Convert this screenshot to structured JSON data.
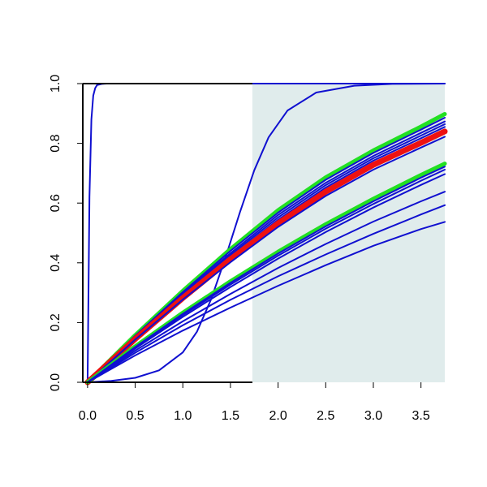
{
  "chart_data": {
    "type": "line",
    "title": "",
    "xlabel": "",
    "ylabel": "",
    "xlim": [
      -0.05,
      3.75
    ],
    "ylim": [
      0,
      1
    ],
    "x_ticks": [
      "0.0",
      "0.5",
      "1.0",
      "1.5",
      "2.0",
      "2.5",
      "3.0",
      "3.5"
    ],
    "y_ticks": [
      "0.0",
      "0.2",
      "0.4",
      "0.6",
      "0.8",
      "1.0"
    ],
    "grid": false,
    "legend": "none",
    "shaded_region": {
      "x_from": 1.73,
      "x_to": 3.75,
      "color": "#e0ecec"
    },
    "colors": {
      "blue": "#1010d0",
      "green": "#22e022",
      "red": "#ee1111",
      "axis": "#000000"
    },
    "series": [
      {
        "style": "blue",
        "x": [
          0,
          0.02,
          0.04,
          0.06,
          0.08,
          0.1,
          0.15,
          0.2,
          0.5,
          1.0,
          2.0,
          3.75
        ],
        "y": [
          0,
          0.62,
          0.88,
          0.96,
          0.985,
          0.995,
          0.999,
          1.0,
          1.0,
          1.0,
          1.0,
          1.0
        ]
      },
      {
        "style": "blue",
        "x": [
          0,
          0.25,
          0.5,
          0.75,
          1.0,
          1.15,
          1.3,
          1.45,
          1.6,
          1.75,
          1.9,
          2.1,
          2.4,
          2.8,
          3.2,
          3.75
        ],
        "y": [
          0,
          0.005,
          0.015,
          0.04,
          0.1,
          0.17,
          0.28,
          0.42,
          0.57,
          0.71,
          0.82,
          0.91,
          0.97,
          0.993,
          0.999,
          1.0
        ]
      },
      {
        "style": "green",
        "x": [
          0,
          0.5,
          1.0,
          1.5,
          2.0,
          2.5,
          3.0,
          3.5,
          3.75
        ],
        "y": [
          0,
          0.158,
          0.306,
          0.446,
          0.576,
          0.686,
          0.776,
          0.856,
          0.898
        ]
      },
      {
        "style": "blue",
        "x": [
          0,
          0.5,
          1.0,
          1.5,
          2.0,
          2.5,
          3.0,
          3.5,
          3.75
        ],
        "y": [
          0,
          0.156,
          0.302,
          0.44,
          0.568,
          0.678,
          0.768,
          0.846,
          0.886
        ]
      },
      {
        "style": "blue",
        "x": [
          0,
          0.5,
          1.0,
          1.5,
          2.0,
          2.5,
          3.0,
          3.5,
          3.75
        ],
        "y": [
          0,
          0.154,
          0.297,
          0.432,
          0.56,
          0.668,
          0.758,
          0.835,
          0.873
        ]
      },
      {
        "style": "blue",
        "x": [
          0,
          0.5,
          1.0,
          1.5,
          2.0,
          2.5,
          3.0,
          3.5,
          3.75
        ],
        "y": [
          0,
          0.152,
          0.293,
          0.426,
          0.552,
          0.66,
          0.75,
          0.826,
          0.864
        ]
      },
      {
        "style": "blue",
        "x": [
          0,
          0.5,
          1.0,
          1.5,
          2.0,
          2.5,
          3.0,
          3.5,
          3.75
        ],
        "y": [
          0,
          0.15,
          0.289,
          0.42,
          0.544,
          0.652,
          0.742,
          0.817,
          0.855
        ]
      },
      {
        "style": "red",
        "x": [
          0,
          0.5,
          1.0,
          1.5,
          2.0,
          2.5,
          3.0,
          3.5,
          3.75
        ],
        "y": [
          0,
          0.145,
          0.282,
          0.412,
          0.532,
          0.638,
          0.728,
          0.802,
          0.84
        ]
      },
      {
        "style": "blue",
        "x": [
          0,
          0.5,
          1.0,
          1.5,
          2.0,
          2.5,
          3.0,
          3.5,
          3.75
        ],
        "y": [
          0,
          0.143,
          0.277,
          0.402,
          0.52,
          0.624,
          0.712,
          0.786,
          0.822
        ]
      },
      {
        "style": "green",
        "x": [
          0,
          0.5,
          1.0,
          1.5,
          2.0,
          2.5,
          3.0,
          3.5,
          3.75
        ],
        "y": [
          0,
          0.12,
          0.233,
          0.338,
          0.437,
          0.529,
          0.614,
          0.694,
          0.732
        ]
      },
      {
        "style": "blue",
        "x": [
          0,
          0.5,
          1.0,
          1.5,
          2.0,
          2.5,
          3.0,
          3.5,
          3.75
        ],
        "y": [
          0,
          0.118,
          0.229,
          0.333,
          0.431,
          0.522,
          0.606,
          0.685,
          0.722
        ]
      },
      {
        "style": "blue",
        "x": [
          0,
          0.5,
          1.0,
          1.5,
          2.0,
          2.5,
          3.0,
          3.5,
          3.75
        ],
        "y": [
          0,
          0.116,
          0.225,
          0.327,
          0.424,
          0.514,
          0.597,
          0.675,
          0.712
        ]
      },
      {
        "style": "blue",
        "x": [
          0,
          0.5,
          1.0,
          1.5,
          2.0,
          2.5,
          3.0,
          3.5,
          3.75
        ],
        "y": [
          0,
          0.113,
          0.219,
          0.319,
          0.414,
          0.503,
          0.585,
          0.661,
          0.697
        ]
      },
      {
        "style": "blue",
        "x": [
          0,
          0.5,
          1.0,
          1.5,
          2.0,
          2.5,
          3.0,
          3.5,
          3.75
        ],
        "y": [
          0,
          0.106,
          0.204,
          0.296,
          0.383,
          0.463,
          0.538,
          0.606,
          0.638
        ]
      },
      {
        "style": "blue",
        "x": [
          0,
          0.5,
          1.0,
          1.5,
          2.0,
          2.5,
          3.0,
          3.5,
          3.75
        ],
        "y": [
          0,
          0.099,
          0.191,
          0.276,
          0.355,
          0.428,
          0.497,
          0.562,
          0.593
        ]
      },
      {
        "style": "blue",
        "x": [
          0,
          0.5,
          1.0,
          1.5,
          2.0,
          2.5,
          3.0,
          3.5,
          3.75
        ],
        "y": [
          0,
          0.09,
          0.173,
          0.25,
          0.323,
          0.392,
          0.457,
          0.513,
          0.537
        ]
      }
    ]
  }
}
